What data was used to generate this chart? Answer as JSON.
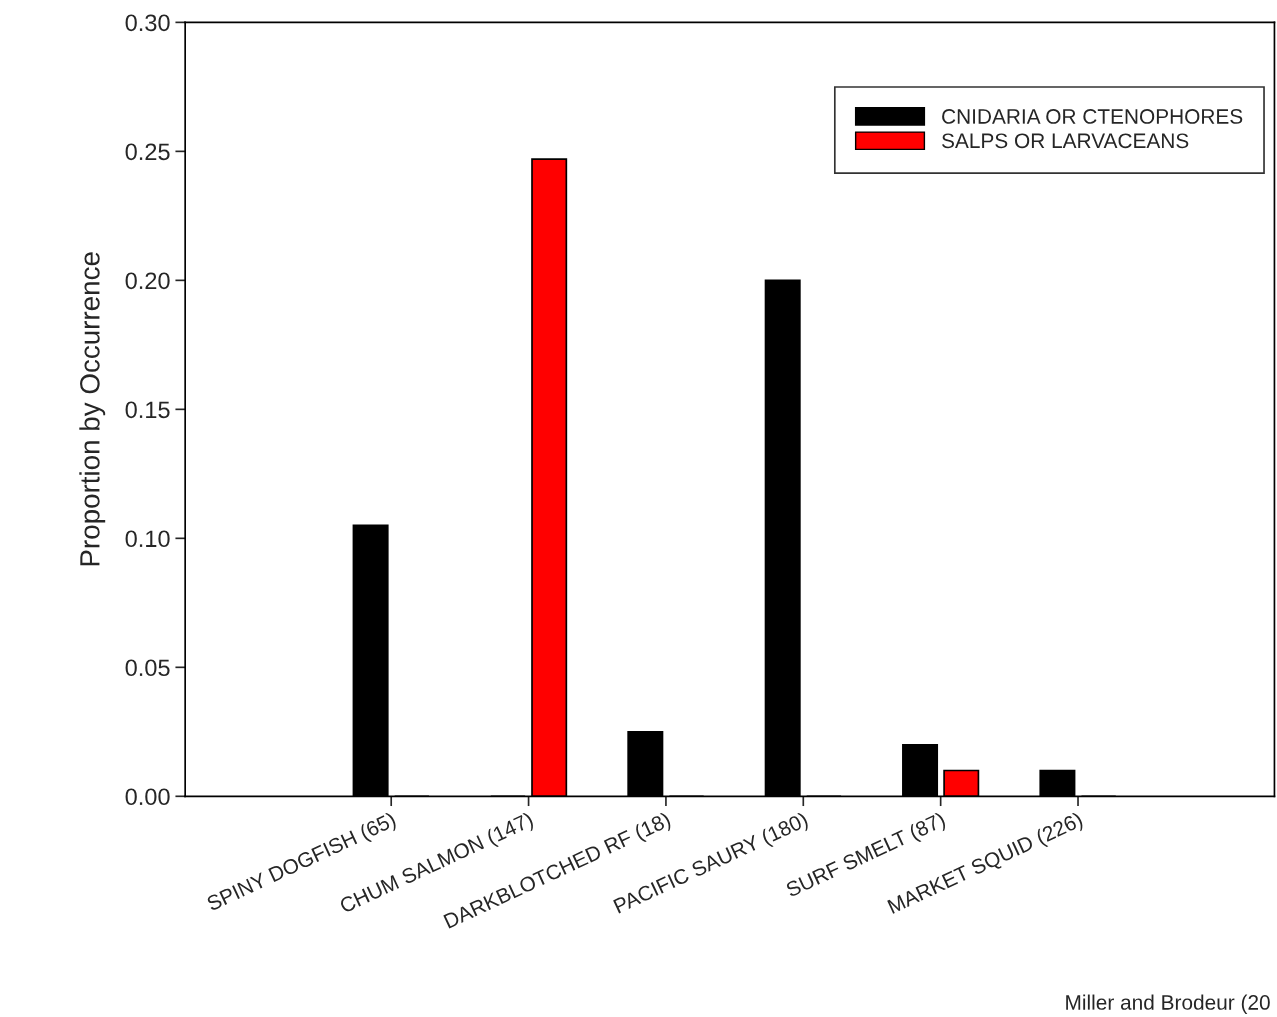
{
  "chart_data": {
    "type": "bar",
    "ylabel": "Proportion by Occurrence",
    "categories": [
      "SPINY DOGFISH (65)",
      "CHUM SALMON (147)",
      "DARKBLOTCHED RF (18)",
      "PACIFIC SAURY (180)",
      "SURF SMELT (87)",
      "MARKET SQUID (226)"
    ],
    "series": [
      {
        "name": "CNIDARIA OR CTENOPHORES",
        "color": "#000000",
        "values": [
          0.105,
          0,
          0.025,
          0.2,
          0.02,
          0.01
        ]
      },
      {
        "name": "SALPS OR LARVACEANS",
        "color": "#ff0000",
        "values": [
          0,
          0.247,
          0,
          0,
          0.01,
          0
        ]
      }
    ],
    "ylim": [
      0,
      0.3
    ],
    "yticks": [
      {
        "value": 0,
        "label": "0.00"
      },
      {
        "value": 0.05,
        "label": "0.05"
      },
      {
        "value": 0.1,
        "label": "0.10"
      },
      {
        "value": 0.15,
        "label": "0.15"
      },
      {
        "value": 0.2,
        "label": "0.20"
      },
      {
        "value": 0.25,
        "label": "0.25"
      },
      {
        "value": 0.3,
        "label": "0.30"
      }
    ],
    "grid": false,
    "legend": "top right",
    "annotations": [
      "Miller and Brodeur (20"
    ]
  }
}
